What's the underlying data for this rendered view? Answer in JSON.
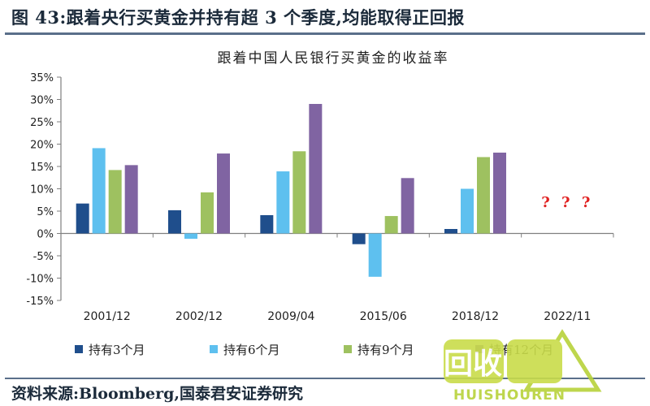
{
  "figure_title": "图 43:跟着央行买黄金并持有超 3 个季度,均能取得正回报",
  "source_text": "资料来源:Bloomberg,国泰君安证券研究",
  "watermark": {
    "text_cn": "回收",
    "text_en": "HUISHOUREN"
  },
  "colors": {
    "s3": "#1f4e8c",
    "s6": "#5ec0ef",
    "s9": "#9ec160",
    "s12": "#8064a2",
    "question": "#e02020",
    "title_blue": "#1b2a3a"
  },
  "chart_data": {
    "type": "bar",
    "title": "跟着中国人民银行买黄金的收益率",
    "xlabel": "",
    "ylabel": "",
    "ylim": [
      -0.15,
      0.35
    ],
    "yticks": [
      -0.15,
      -0.1,
      -0.05,
      0,
      0.05,
      0.1,
      0.15,
      0.2,
      0.25,
      0.3,
      0.35
    ],
    "ytick_labels": [
      "-15%",
      "-10%",
      "-5%",
      "0%",
      "5%",
      "10%",
      "15%",
      "20%",
      "25%",
      "30%",
      "35%"
    ],
    "categories": [
      "2001/12",
      "2002/12",
      "2009/04",
      "2015/06",
      "2018/12",
      "2022/11"
    ],
    "series": [
      {
        "name": "持有3个月",
        "color_key": "s3",
        "values": [
          0.067,
          0.052,
          0.041,
          -0.024,
          0.01,
          null
        ]
      },
      {
        "name": "持有6个月",
        "color_key": "s6",
        "values": [
          0.191,
          -0.012,
          0.139,
          -0.097,
          0.1,
          null
        ]
      },
      {
        "name": "持有9个月",
        "color_key": "s9",
        "values": [
          0.142,
          0.092,
          0.184,
          0.039,
          0.171,
          null
        ]
      },
      {
        "name": "持有12个月",
        "color_key": "s12",
        "values": [
          0.153,
          0.179,
          0.29,
          0.124,
          0.181,
          null
        ]
      }
    ],
    "annotations": [
      {
        "category": "2022/11",
        "text": "? ? ?"
      }
    ],
    "grid": false,
    "legend_position": "bottom"
  }
}
